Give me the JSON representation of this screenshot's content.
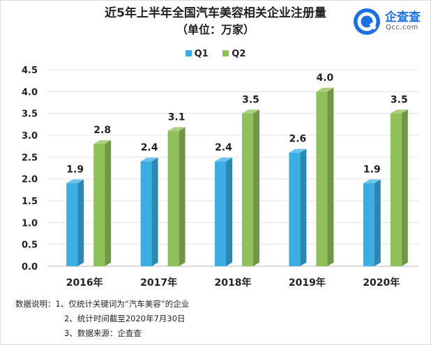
{
  "chart_data": {
    "type": "bar",
    "title": "近5年上半年全国汽车美容相关企业注册量",
    "subtitle": "（单位：万家）",
    "categories": [
      "2016年",
      "2017年",
      "2018年",
      "2019年",
      "2020年"
    ],
    "series": [
      {
        "name": "Q1",
        "values": [
          1.9,
          2.4,
          2.4,
          2.6,
          1.9
        ],
        "color": "#3aaee3"
      },
      {
        "name": "Q2",
        "values": [
          2.8,
          3.1,
          3.5,
          4.0,
          3.5
        ],
        "color": "#8fc05a"
      }
    ],
    "value_labels": {
      "Q1": [
        "1.9",
        "2.4",
        "2.4",
        "2.6",
        "1.9"
      ],
      "Q2": [
        "2.8",
        "3.1",
        "3.5",
        "4.0",
        "3.5"
      ]
    },
    "yticks": [
      "0.0",
      "0.5",
      "1.0",
      "1.5",
      "2.0",
      "2.5",
      "3.0",
      "3.5",
      "4.0",
      "4.5"
    ],
    "ylim": [
      0,
      4.5
    ],
    "grid": true,
    "legend_position": "top"
  },
  "logo": {
    "name": "企查查",
    "domain": "Qcc.com",
    "icon": "qcc-logo-icon"
  },
  "notes": {
    "line1": "数据说明：1、仅统计关键词为“汽车美容”的企业",
    "line2": "2、统计时间截至2020年7月30日",
    "line3": "3、数据来源：企查查"
  }
}
